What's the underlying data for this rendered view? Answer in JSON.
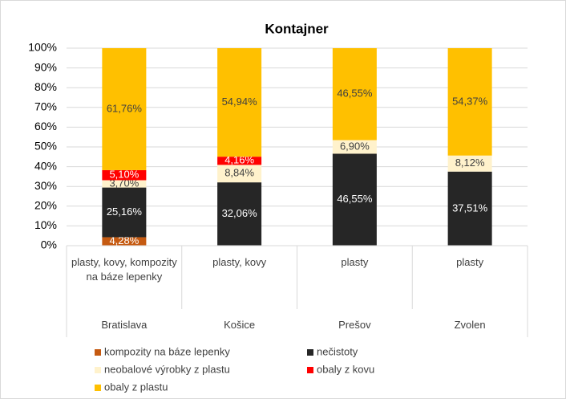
{
  "chart_data": {
    "type": "stacked_bar",
    "title": "Kontajner",
    "categories": [
      "Bratislava",
      "Košice",
      "Prešov",
      "Zvolen"
    ],
    "subcategories": [
      "plasty, kovy, kompozity na báze lepenky",
      "plasty, kovy",
      "plasty",
      "plasty"
    ],
    "series": [
      {
        "name": "kompozity na báze lepenky",
        "color": "#c55a11",
        "values": [
          4.28,
          null,
          null,
          null
        ],
        "value_labels": [
          "4,28%",
          null,
          null,
          null
        ]
      },
      {
        "name": "nečistoty",
        "color": "#262626",
        "values": [
          25.16,
          32.06,
          46.55,
          37.51
        ],
        "value_labels": [
          "25,16%",
          "32,06%",
          "46,55%",
          "37,51%"
        ]
      },
      {
        "name": "neobalové výrobky z plastu",
        "color": "#fff2cc",
        "values": [
          3.7,
          8.84,
          6.9,
          8.12
        ],
        "value_labels": [
          "3,70%",
          "8,84%",
          "6,90%",
          "8,12%"
        ]
      },
      {
        "name": "obaly z kovu",
        "color": "#ff0000",
        "values": [
          5.1,
          4.16,
          null,
          null
        ],
        "value_labels": [
          "5,10%",
          "4,16%",
          null,
          null
        ]
      },
      {
        "name": "obaly z plastu",
        "color": "#ffc000",
        "values": [
          61.76,
          54.94,
          46.55,
          54.37
        ],
        "value_labels": [
          "61,76%",
          "54,94%",
          "46,55%",
          "54,37%"
        ]
      }
    ],
    "ylim": [
      0,
      100
    ],
    "yticks": [
      {
        "value": 0,
        "label": "0%"
      },
      {
        "value": 10,
        "label": "10%"
      },
      {
        "value": 20,
        "label": "20%"
      },
      {
        "value": 30,
        "label": "30%"
      },
      {
        "value": 40,
        "label": "40%"
      },
      {
        "value": 50,
        "label": "50%"
      },
      {
        "value": 60,
        "label": "60%"
      },
      {
        "value": 70,
        "label": "70%"
      },
      {
        "value": 80,
        "label": "80%"
      },
      {
        "value": 90,
        "label": "90%"
      },
      {
        "value": 100,
        "label": "100%"
      }
    ],
    "grid": true,
    "legend": "bottom"
  }
}
